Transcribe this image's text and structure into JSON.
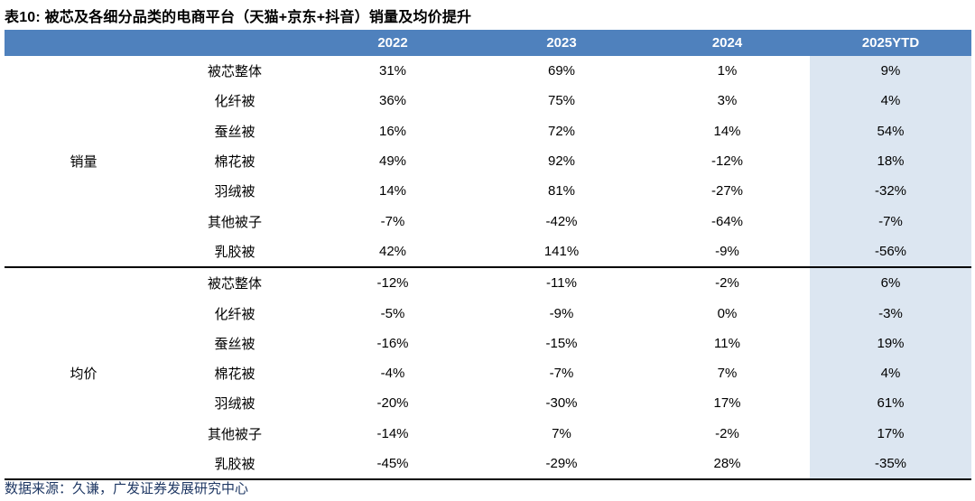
{
  "title": "表10:  被芯及各细分品类的电商平台（天猫+京东+抖音）销量及均价提升",
  "source_note": "数据来源：久谦，广发证券发展研究中心",
  "colors": {
    "header_bg": "#4F81BD",
    "header_text": "#ffffff",
    "highlight_column_bg": "#DCE6F1",
    "source_text": "#1F3864",
    "section_divider": "#000000"
  },
  "columns": [
    "2022",
    "2023",
    "2024",
    "2025YTD"
  ],
  "highlight_column": "2025YTD",
  "sections": [
    {
      "label": "销量",
      "rows": [
        {
          "category": "被芯整体",
          "values": [
            "31%",
            "69%",
            "1%",
            "9%"
          ]
        },
        {
          "category": "化纤被",
          "values": [
            "36%",
            "75%",
            "3%",
            "4%"
          ]
        },
        {
          "category": "蚕丝被",
          "values": [
            "16%",
            "72%",
            "14%",
            "54%"
          ]
        },
        {
          "category": "棉花被",
          "values": [
            "49%",
            "92%",
            "-12%",
            "18%"
          ]
        },
        {
          "category": "羽绒被",
          "values": [
            "14%",
            "81%",
            "-27%",
            "-32%"
          ]
        },
        {
          "category": "其他被子",
          "values": [
            "-7%",
            "-42%",
            "-64%",
            "-7%"
          ]
        },
        {
          "category": "乳胶被",
          "values": [
            "42%",
            "141%",
            "-9%",
            "-56%"
          ]
        }
      ]
    },
    {
      "label": "均价",
      "rows": [
        {
          "category": "被芯整体",
          "values": [
            "-12%",
            "-11%",
            "-2%",
            "6%"
          ]
        },
        {
          "category": "化纤被",
          "values": [
            "-5%",
            "-9%",
            "0%",
            "-3%"
          ]
        },
        {
          "category": "蚕丝被",
          "values": [
            "-16%",
            "-15%",
            "11%",
            "19%"
          ]
        },
        {
          "category": "棉花被",
          "values": [
            "-4%",
            "-7%",
            "7%",
            "4%"
          ]
        },
        {
          "category": "羽绒被",
          "values": [
            "-20%",
            "-30%",
            "17%",
            "61%"
          ]
        },
        {
          "category": "其他被子",
          "values": [
            "-14%",
            "7%",
            "-2%",
            "17%"
          ]
        },
        {
          "category": "乳胶被",
          "values": [
            "-45%",
            "-29%",
            "28%",
            "-35%"
          ]
        }
      ]
    }
  ]
}
